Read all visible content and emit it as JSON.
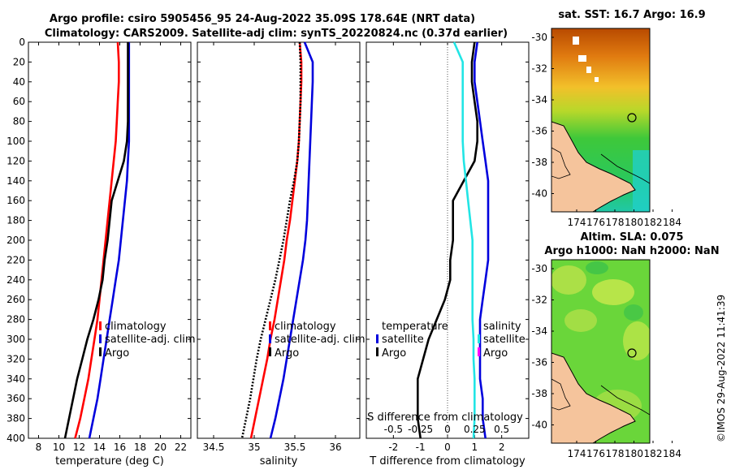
{
  "title": {
    "line1": "Argo profile: csiro 5905456_95 24-Aug-2022 35.09S 178.64E (NRT data)",
    "line2": "Climatology: CARS2009. Satellite-adj clim: synTS_20220824.nc (0.37d earlier)"
  },
  "colors": {
    "climatology": "#ff0000",
    "satellite": "#0000dd",
    "argo": "#000000",
    "sat_sal": "#22e5e5",
    "sal_legend": "#ff00ff"
  },
  "chart_data": [
    {
      "type": "line",
      "name": "temperature",
      "xlabel": "temperature (deg C)",
      "ylabel": "",
      "xlim": [
        7,
        23
      ],
      "ylim": [
        400,
        0
      ],
      "xticks": [
        "8",
        "10",
        "12",
        "14",
        "16",
        "18",
        "20",
        "22"
      ],
      "xtick_values": [
        8,
        10,
        12,
        14,
        16,
        18,
        20,
        22
      ],
      "yticks": [
        "0",
        "20",
        "40",
        "60",
        "80",
        "100",
        "120",
        "140",
        "160",
        "180",
        "200",
        "220",
        "240",
        "260",
        "280",
        "300",
        "320",
        "340",
        "360",
        "380",
        "400"
      ],
      "legend": [
        "climatology",
        "satellite-adj. clim",
        "Argo"
      ],
      "series": [
        {
          "name": "climatology",
          "x": [
            15.8,
            15.9,
            15.9,
            15.8,
            15.7,
            15.6,
            15.4,
            15.2,
            15.0,
            14.8,
            14.6,
            14.4,
            14.2,
            14.0,
            13.8,
            13.5,
            13.2,
            12.9,
            12.5,
            12.1,
            11.6
          ],
          "y": [
            0,
            20,
            40,
            60,
            80,
            100,
            120,
            140,
            160,
            180,
            200,
            220,
            240,
            260,
            280,
            300,
            320,
            340,
            360,
            380,
            400
          ]
        },
        {
          "name": "satellite-adj. clim",
          "x": [
            16.9,
            16.9,
            16.9,
            16.9,
            16.9,
            16.9,
            16.8,
            16.7,
            16.5,
            16.3,
            16.1,
            15.9,
            15.6,
            15.3,
            15.0,
            14.7,
            14.4,
            14.1,
            13.8,
            13.4,
            13.0
          ],
          "y": [
            0,
            20,
            40,
            60,
            80,
            100,
            120,
            140,
            160,
            180,
            200,
            220,
            240,
            260,
            280,
            300,
            320,
            340,
            360,
            380,
            400
          ]
        },
        {
          "name": "Argo",
          "x": [
            16.8,
            16.8,
            16.8,
            16.8,
            16.8,
            16.7,
            16.4,
            15.8,
            15.2,
            15.0,
            14.8,
            14.5,
            14.3,
            13.9,
            13.4,
            12.8,
            12.3,
            11.8,
            11.4,
            11.0,
            10.6
          ],
          "y": [
            0,
            20,
            40,
            60,
            80,
            100,
            120,
            140,
            160,
            180,
            200,
            220,
            240,
            260,
            280,
            300,
            320,
            340,
            360,
            380,
            400
          ]
        }
      ]
    },
    {
      "type": "line",
      "name": "salinity",
      "xlabel": "salinity",
      "xlim": [
        34.3,
        36.3
      ],
      "ylim": [
        400,
        0
      ],
      "xticks": [
        "34.5",
        "35",
        "35.5",
        "36"
      ],
      "xtick_values": [
        34.5,
        35,
        35.5,
        36
      ],
      "legend": [
        "climatology",
        "satellite-adj. clim",
        "Argo"
      ],
      "series": [
        {
          "name": "climatology",
          "x": [
            35.56,
            35.58,
            35.58,
            35.57,
            35.56,
            35.55,
            35.53,
            35.5,
            35.47,
            35.44,
            35.4,
            35.37,
            35.33,
            35.29,
            35.25,
            35.2,
            35.16,
            35.11,
            35.06,
            35.01,
            34.96
          ],
          "y": [
            0,
            20,
            40,
            60,
            80,
            100,
            120,
            140,
            160,
            180,
            200,
            220,
            240,
            260,
            280,
            300,
            320,
            340,
            360,
            380,
            400
          ]
        },
        {
          "name": "satellite-adj. clim",
          "x": [
            35.62,
            35.72,
            35.72,
            35.71,
            35.7,
            35.69,
            35.68,
            35.67,
            35.66,
            35.65,
            35.63,
            35.6,
            35.56,
            35.52,
            35.48,
            35.44,
            35.4,
            35.36,
            35.31,
            35.26,
            35.2
          ],
          "y": [
            0,
            20,
            40,
            60,
            80,
            100,
            120,
            140,
            160,
            180,
            200,
            220,
            240,
            260,
            280,
            300,
            320,
            340,
            360,
            380,
            400
          ]
        },
        {
          "name": "Argo",
          "x": [
            35.56,
            35.57,
            35.57,
            35.57,
            35.56,
            35.55,
            35.53,
            35.49,
            35.44,
            35.4,
            35.36,
            35.31,
            35.26,
            35.2,
            35.14,
            35.08,
            35.03,
            34.99,
            34.95,
            34.9,
            34.85
          ],
          "y": [
            0,
            20,
            40,
            60,
            80,
            100,
            120,
            140,
            160,
            180,
            200,
            220,
            240,
            260,
            280,
            300,
            320,
            340,
            360,
            380,
            400
          ]
        }
      ]
    },
    {
      "type": "line",
      "name": "difference",
      "xlabel": "T difference from climatology",
      "xlabel_top": "S difference from climatology",
      "xlim": [
        -3,
        3
      ],
      "ylim": [
        400,
        0
      ],
      "xticks": [
        "-2",
        "-1",
        "0",
        "1",
        "2"
      ],
      "xtick_values": [
        -2,
        -1,
        0,
        1,
        2
      ],
      "s_ticks": [
        "-0.5",
        "-0.25",
        "0",
        "0.25",
        "0.5"
      ],
      "s_tick_values": [
        -0.5,
        -0.25,
        0,
        0.25,
        0.5
      ],
      "legend_t_title": "temperature",
      "legend_s_title": "salinity",
      "legend_t": [
        "satellite",
        "Argo"
      ],
      "legend_s": [
        "satellite",
        "Argo"
      ],
      "series": [
        {
          "name": "T satellite",
          "x": [
            1.1,
            1.0,
            1.0,
            1.1,
            1.2,
            1.3,
            1.4,
            1.5,
            1.5,
            1.5,
            1.5,
            1.5,
            1.4,
            1.3,
            1.2,
            1.2,
            1.2,
            1.2,
            1.3,
            1.3,
            1.4
          ],
          "y": [
            0,
            20,
            40,
            60,
            80,
            100,
            120,
            140,
            160,
            180,
            200,
            220,
            240,
            260,
            280,
            300,
            320,
            340,
            360,
            380,
            400
          ]
        },
        {
          "name": "T Argo",
          "x": [
            1.0,
            0.9,
            0.9,
            1.0,
            1.1,
            1.1,
            1.0,
            0.6,
            0.2,
            0.2,
            0.2,
            0.1,
            0.1,
            -0.1,
            -0.4,
            -0.7,
            -0.9,
            -1.1,
            -1.1,
            -1.1,
            -1.0
          ],
          "y": [
            0,
            20,
            40,
            60,
            80,
            100,
            120,
            140,
            160,
            180,
            200,
            220,
            240,
            260,
            280,
            300,
            320,
            340,
            360,
            380,
            400
          ]
        },
        {
          "name": "S satellite",
          "x": [
            0.06,
            0.14,
            0.14,
            0.14,
            0.14,
            0.14,
            0.15,
            0.17,
            0.19,
            0.21,
            0.23,
            0.23,
            0.23,
            0.23,
            0.23,
            0.24,
            0.24,
            0.25,
            0.25,
            0.25,
            0.24
          ],
          "y": [
            0,
            20,
            40,
            60,
            80,
            100,
            120,
            140,
            160,
            180,
            200,
            220,
            240,
            260,
            280,
            300,
            320,
            340,
            360,
            380,
            400
          ]
        }
      ]
    }
  ],
  "maps": {
    "sst_title": "sat. SST: 16.7 Argo: 16.9",
    "sla_title1": "Altim. SLA: 0.075",
    "sla_title2": "Argo h1000: NaN h2000: NaN",
    "lon_ticks": [
      "174",
      "176",
      "178",
      "180",
      "182",
      "184"
    ],
    "lat_ticks": [
      "-30",
      "-32",
      "-34",
      "-36",
      "-38",
      "-40"
    ]
  },
  "timestamp": "©IMOS 29-Aug-2022 11:41:39"
}
